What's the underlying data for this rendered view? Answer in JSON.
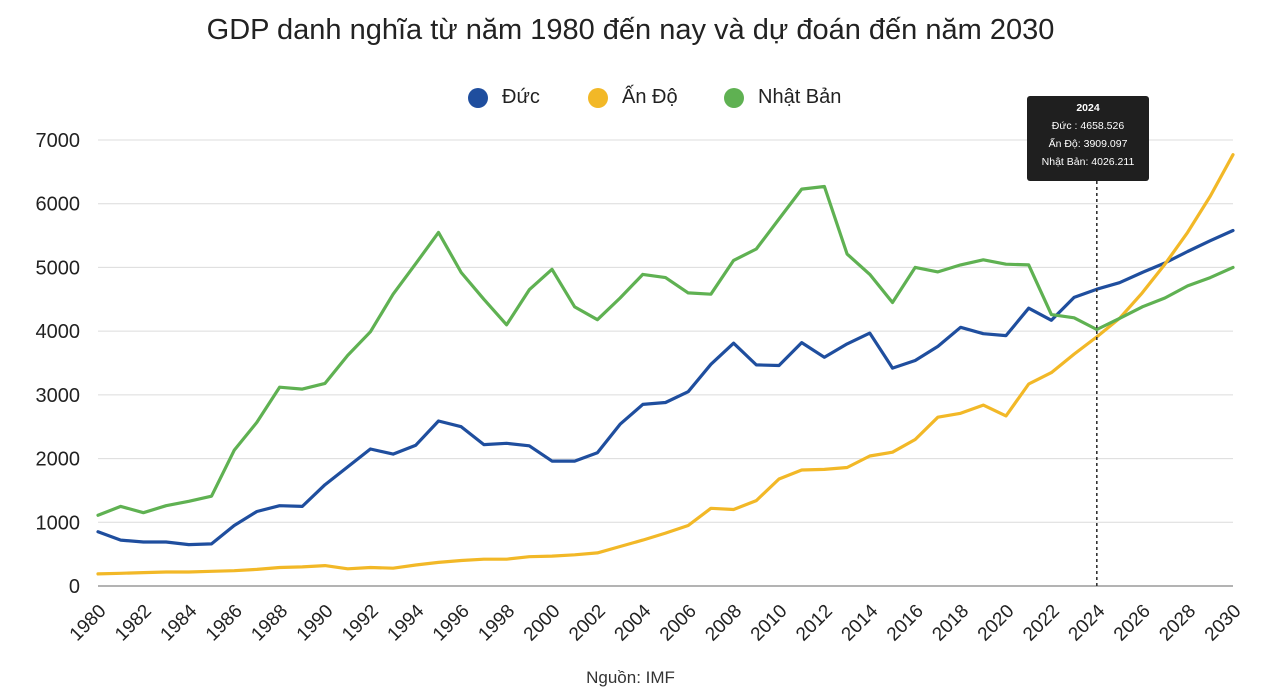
{
  "chart_data": {
    "type": "line",
    "title": "GDP danh nghĩa từ năm 1980 đến nay và dự đoán đến năm 2030",
    "source": "Nguồn: IMF",
    "x": [
      1980,
      1981,
      1982,
      1983,
      1984,
      1985,
      1986,
      1987,
      1988,
      1989,
      1990,
      1991,
      1992,
      1993,
      1994,
      1995,
      1996,
      1997,
      1998,
      1999,
      2000,
      2001,
      2002,
      2003,
      2004,
      2005,
      2006,
      2007,
      2008,
      2009,
      2010,
      2011,
      2012,
      2013,
      2014,
      2015,
      2016,
      2017,
      2018,
      2019,
      2020,
      2021,
      2022,
      2023,
      2024,
      2025,
      2026,
      2027,
      2028,
      2029,
      2030
    ],
    "x_ticks": [
      1980,
      1982,
      1984,
      1986,
      1988,
      1990,
      1992,
      1994,
      1996,
      1998,
      2000,
      2002,
      2004,
      2006,
      2008,
      2010,
      2012,
      2014,
      2016,
      2018,
      2020,
      2022,
      2024,
      2026,
      2028,
      2030
    ],
    "y_ticks": [
      0,
      1000,
      2000,
      3000,
      4000,
      5000,
      6000,
      7000
    ],
    "ylim": [
      0,
      7000
    ],
    "grid": true,
    "legend_position": "top",
    "series": [
      {
        "name": "Đức",
        "color": "#1f4e9e",
        "values": [
          850,
          720,
          690,
          690,
          650,
          660,
          950,
          1170,
          1260,
          1250,
          1590,
          1870,
          2150,
          2070,
          2210,
          2590,
          2500,
          2220,
          2240,
          2200,
          1960,
          1960,
          2090,
          2540,
          2850,
          2880,
          3050,
          3480,
          3810,
          3470,
          3460,
          3820,
          3590,
          3800,
          3970,
          3420,
          3540,
          3760,
          4060,
          3960,
          3930,
          4360,
          4170,
          4530,
          4658.526,
          4760,
          4920,
          5070,
          5250,
          5420,
          5580
        ]
      },
      {
        "name": "Ấn Độ",
        "color": "#f2b827",
        "values": [
          190,
          200,
          210,
          220,
          220,
          230,
          240,
          260,
          290,
          300,
          320,
          270,
          290,
          280,
          330,
          370,
          400,
          420,
          420,
          460,
          470,
          490,
          520,
          620,
          720,
          830,
          950,
          1220,
          1200,
          1340,
          1680,
          1820,
          1830,
          1860,
          2040,
          2100,
          2300,
          2650,
          2710,
          2840,
          2670,
          3170,
          3350,
          3640,
          3909.097,
          4200,
          4600,
          5050,
          5550,
          6120,
          6770
        ]
      },
      {
        "name": "Nhật Bản",
        "color": "#5fb152",
        "values": [
          1110,
          1250,
          1150,
          1260,
          1330,
          1410,
          2130,
          2570,
          3120,
          3090,
          3180,
          3620,
          3990,
          4580,
          5060,
          5550,
          4920,
          4500,
          4100,
          4650,
          4970,
          4380,
          4180,
          4520,
          4890,
          4840,
          4600,
          4580,
          5110,
          5290,
          5760,
          6230,
          6270,
          5210,
          4890,
          4450,
          5000,
          4930,
          5040,
          5120,
          5050,
          5040,
          4260,
          4210,
          4026.211,
          4200,
          4380,
          4520,
          4710,
          4840,
          5000
        ]
      }
    ],
    "tooltip": {
      "title": "2024",
      "lines": [
        "Đức : 4658.526",
        "Ấn Độ: 3909.097",
        "Nhật Bản: 4026.211"
      ]
    },
    "marker_year": 2024
  }
}
